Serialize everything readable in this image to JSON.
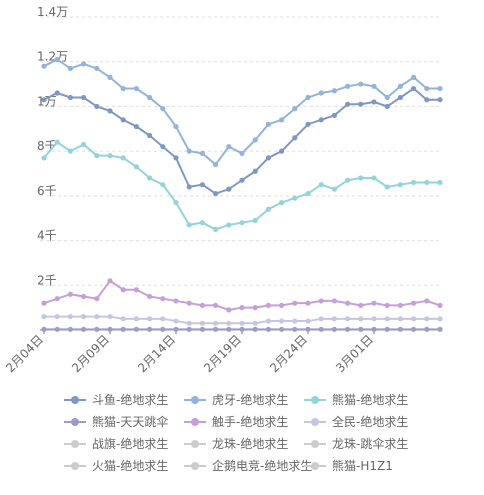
{
  "chart_data": {
    "type": "line",
    "categories": [
      "2月04日",
      null,
      null,
      null,
      null,
      "2月09日",
      null,
      null,
      null,
      null,
      "2月14日",
      null,
      null,
      null,
      null,
      "2月19日",
      null,
      null,
      null,
      null,
      "2月24日",
      null,
      null,
      null,
      null,
      "3月01日",
      null,
      null,
      null,
      null,
      null
    ],
    "series": [
      {
        "name": "斗鱼-绝地求生",
        "color": "#7f98c1",
        "values": [
          10300,
          10600,
          10400,
          10400,
          10000,
          9800,
          9400,
          9100,
          8700,
          8200,
          7700,
          6400,
          6500,
          6100,
          6300,
          6700,
          7100,
          7700,
          8000,
          8600,
          9200,
          9400,
          9600,
          10100,
          10100,
          10200,
          10000,
          10400,
          10800,
          10300,
          10300
        ]
      },
      {
        "name": "虎牙-绝地求生",
        "color": "#93b3d8",
        "values": [
          11800,
          12100,
          11700,
          11900,
          11700,
          11300,
          10800,
          10800,
          10400,
          9900,
          9100,
          8000,
          7900,
          7400,
          8200,
          7900,
          8500,
          9200,
          9400,
          9900,
          10400,
          10600,
          10700,
          10900,
          11000,
          10900,
          10400,
          10900,
          11300,
          10800,
          10800
        ]
      },
      {
        "name": "熊猫-绝地求生",
        "color": "#93d3da",
        "values": [
          7700,
          8400,
          8000,
          8300,
          7800,
          7800,
          7700,
          7300,
          6800,
          6500,
          5700,
          4700,
          4800,
          4500,
          4700,
          4800,
          4900,
          5400,
          5700,
          5900,
          6100,
          6500,
          6300,
          6700,
          6800,
          6800,
          6400,
          6500,
          6600,
          6600,
          6600
        ]
      },
      {
        "name": "熊猫-天天跳伞",
        "color": "#9c9cc8",
        "values": [
          30,
          30,
          30,
          30,
          30,
          30,
          30,
          30,
          30,
          30,
          30,
          30,
          30,
          30,
          30,
          30,
          30,
          30,
          30,
          30,
          30,
          30,
          30,
          30,
          30,
          30,
          30,
          30,
          30,
          30,
          30
        ]
      },
      {
        "name": "触手-绝地求生",
        "color": "#c59fd8",
        "values": [
          1200,
          1400,
          1600,
          1500,
          1400,
          2200,
          1800,
          1800,
          1500,
          1400,
          1300,
          1200,
          1100,
          1100,
          900,
          1000,
          1000,
          1100,
          1100,
          1200,
          1200,
          1300,
          1300,
          1200,
          1100,
          1200,
          1100,
          1100,
          1200,
          1300,
          1100
        ]
      },
      {
        "name": "全民-绝地求生",
        "color": "#c6c6e2",
        "values": [
          600,
          600,
          600,
          600,
          600,
          600,
          500,
          500,
          500,
          500,
          400,
          300,
          300,
          300,
          300,
          300,
          300,
          400,
          400,
          400,
          400,
          500,
          500,
          500,
          500,
          500,
          500,
          500,
          500,
          500,
          500
        ]
      }
    ],
    "legend_inactive": [
      "战旗-绝地求生",
      "龙珠-绝地求生",
      "龙珠-跳伞求生",
      "火猫-绝地求生",
      "企鹅电竞-绝地求生",
      "熊猫-H1Z1"
    ],
    "ylim": [
      0,
      14000
    ],
    "yticks": [
      {
        "value": 2000,
        "label": "2千"
      },
      {
        "value": 4000,
        "label": "4千"
      },
      {
        "value": 6000,
        "label": "6千"
      },
      {
        "value": 8000,
        "label": "8千"
      },
      {
        "value": 10000,
        "label": "1万"
      },
      {
        "value": 12000,
        "label": "1.2万"
      },
      {
        "value": 14000,
        "label": "1.4万"
      }
    ],
    "grid": true
  }
}
